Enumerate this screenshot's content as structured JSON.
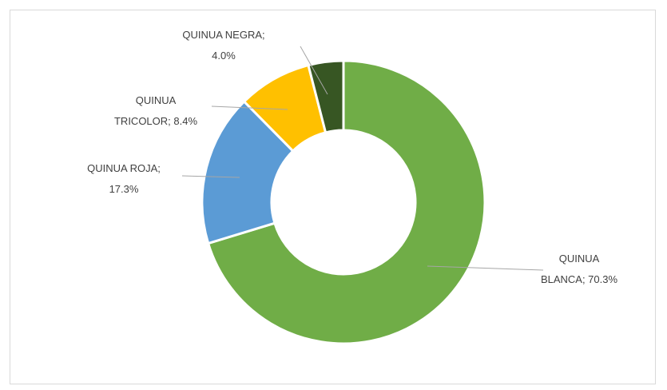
{
  "chart_data": {
    "type": "pie",
    "values": [
      70.3,
      17.3,
      8.4,
      4.0
    ],
    "value_labels": [
      [
        "QUINUA",
        "BLANCA; 70.3%"
      ],
      [
        "QUINUA ROJA;",
        "17.3%"
      ],
      [
        "QUINUA",
        "TRICOLOR; 8.4%"
      ],
      [
        "QUINUA NEGRA;",
        "4.0%"
      ]
    ],
    "colors": [
      "#70ad47",
      "#5b9bd5",
      "#ffc000",
      "#375623"
    ]
  }
}
